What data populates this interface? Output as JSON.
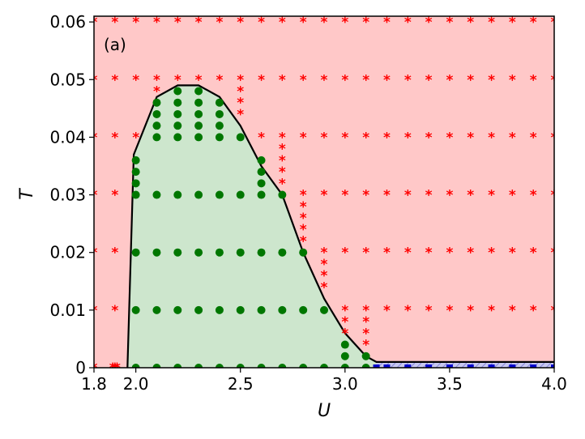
{
  "chart_data": {
    "type": "scatter",
    "panel_label": "(a)",
    "xlabel": "U",
    "ylabel": "T",
    "xlim": [
      1.8,
      4.0
    ],
    "ylim": [
      0,
      0.061
    ],
    "x_ticks": [
      "1.8",
      "2.0",
      "2.5",
      "3.0",
      "3.5",
      "4.0"
    ],
    "y_ticks": [
      "0",
      "0.01",
      "0.02",
      "0.03",
      "0.04",
      "0.05",
      "0.06"
    ],
    "grid": false,
    "colors": {
      "red_region": "#ffc8c8",
      "green_region": "#cde6cd",
      "blue_region": "#c8c8f0",
      "boundary": "#000000",
      "star": "#ff0000",
      "circle": "#007700",
      "square": "#0000cc"
    },
    "boundary": [
      [
        1.96,
        0
      ],
      [
        1.99,
        0.037
      ],
      [
        2.1,
        0.047
      ],
      [
        2.2,
        0.049
      ],
      [
        2.3,
        0.049
      ],
      [
        2.4,
        0.047
      ],
      [
        2.5,
        0.042
      ],
      [
        2.6,
        0.035
      ],
      [
        2.7,
        0.03
      ],
      [
        2.8,
        0.02
      ],
      [
        2.9,
        0.012
      ],
      [
        3.0,
        0.006
      ],
      [
        3.1,
        0.002
      ],
      [
        3.15,
        0.001
      ],
      [
        4.0,
        0.001
      ]
    ],
    "blue_region": {
      "x_start": 3.15,
      "x_end": 4.0,
      "y_top": 0.001
    },
    "series": [
      {
        "marker": "circle",
        "points": [
          [
            2.0,
            0
          ],
          [
            2.0,
            0.01
          ],
          [
            2.0,
            0.02
          ],
          [
            2.0,
            0.03
          ],
          [
            2.0,
            0.032
          ],
          [
            2.0,
            0.034
          ],
          [
            2.0,
            0.036
          ],
          [
            2.1,
            0
          ],
          [
            2.1,
            0.01
          ],
          [
            2.1,
            0.02
          ],
          [
            2.1,
            0.03
          ],
          [
            2.1,
            0.04
          ],
          [
            2.1,
            0.042
          ],
          [
            2.1,
            0.044
          ],
          [
            2.1,
            0.046
          ],
          [
            2.2,
            0
          ],
          [
            2.2,
            0.01
          ],
          [
            2.2,
            0.02
          ],
          [
            2.2,
            0.03
          ],
          [
            2.2,
            0.04
          ],
          [
            2.2,
            0.042
          ],
          [
            2.2,
            0.044
          ],
          [
            2.2,
            0.046
          ],
          [
            2.2,
            0.048
          ],
          [
            2.3,
            0
          ],
          [
            2.3,
            0.01
          ],
          [
            2.3,
            0.02
          ],
          [
            2.3,
            0.03
          ],
          [
            2.3,
            0.04
          ],
          [
            2.3,
            0.042
          ],
          [
            2.3,
            0.044
          ],
          [
            2.3,
            0.046
          ],
          [
            2.3,
            0.048
          ],
          [
            2.4,
            0
          ],
          [
            2.4,
            0.01
          ],
          [
            2.4,
            0.02
          ],
          [
            2.4,
            0.03
          ],
          [
            2.4,
            0.04
          ],
          [
            2.4,
            0.042
          ],
          [
            2.4,
            0.044
          ],
          [
            2.4,
            0.046
          ],
          [
            2.5,
            0
          ],
          [
            2.5,
            0.01
          ],
          [
            2.5,
            0.02
          ],
          [
            2.5,
            0.03
          ],
          [
            2.5,
            0.04
          ],
          [
            2.6,
            0
          ],
          [
            2.6,
            0.01
          ],
          [
            2.6,
            0.02
          ],
          [
            2.6,
            0.03
          ],
          [
            2.6,
            0.032
          ],
          [
            2.6,
            0.034
          ],
          [
            2.6,
            0.036
          ],
          [
            2.7,
            0
          ],
          [
            2.7,
            0.01
          ],
          [
            2.7,
            0.02
          ],
          [
            2.7,
            0.03
          ],
          [
            2.8,
            0
          ],
          [
            2.8,
            0.01
          ],
          [
            2.8,
            0.02
          ],
          [
            2.9,
            0
          ],
          [
            2.9,
            0.01
          ],
          [
            3.0,
            0
          ],
          [
            3.0,
            0.002
          ],
          [
            3.0,
            0.004
          ],
          [
            3.1,
            0
          ],
          [
            3.1,
            0.002
          ]
        ]
      },
      {
        "marker": "star",
        "points": [
          [
            1.8,
            0
          ],
          [
            1.8,
            0.01
          ],
          [
            1.8,
            0.02
          ],
          [
            1.8,
            0.03
          ],
          [
            1.8,
            0.04
          ],
          [
            1.8,
            0.05
          ],
          [
            1.8,
            0.06
          ],
          [
            1.9,
            0.01
          ],
          [
            1.9,
            0.02
          ],
          [
            1.9,
            0.03
          ],
          [
            1.9,
            0.04
          ],
          [
            1.9,
            0.05
          ],
          [
            1.9,
            0.06
          ],
          [
            1.89,
            0
          ],
          [
            1.9,
            0
          ],
          [
            1.91,
            0
          ],
          [
            2.0,
            0.04
          ],
          [
            2.0,
            0.05
          ],
          [
            2.0,
            0.06
          ],
          [
            2.1,
            0.05
          ],
          [
            2.1,
            0.06
          ],
          [
            2.1,
            0.048
          ],
          [
            2.2,
            0.05
          ],
          [
            2.2,
            0.06
          ],
          [
            2.3,
            0.05
          ],
          [
            2.3,
            0.06
          ],
          [
            2.4,
            0.05
          ],
          [
            2.4,
            0.06
          ],
          [
            2.5,
            0.044
          ],
          [
            2.5,
            0.046
          ],
          [
            2.5,
            0.048
          ],
          [
            2.5,
            0.05
          ],
          [
            2.5,
            0.06
          ],
          [
            2.6,
            0.04
          ],
          [
            2.6,
            0.05
          ],
          [
            2.6,
            0.06
          ],
          [
            2.7,
            0.032
          ],
          [
            2.7,
            0.034
          ],
          [
            2.7,
            0.036
          ],
          [
            2.7,
            0.038
          ],
          [
            2.7,
            0.04
          ],
          [
            2.7,
            0.05
          ],
          [
            2.7,
            0.06
          ],
          [
            2.8,
            0.022
          ],
          [
            2.8,
            0.024
          ],
          [
            2.8,
            0.026
          ],
          [
            2.8,
            0.028
          ],
          [
            2.8,
            0.03
          ],
          [
            2.8,
            0.04
          ],
          [
            2.8,
            0.05
          ],
          [
            2.8,
            0.06
          ],
          [
            2.9,
            0.014
          ],
          [
            2.9,
            0.016
          ],
          [
            2.9,
            0.018
          ],
          [
            2.9,
            0.02
          ],
          [
            2.9,
            0.03
          ],
          [
            2.9,
            0.04
          ],
          [
            2.9,
            0.05
          ],
          [
            2.9,
            0.06
          ],
          [
            3.0,
            0.006
          ],
          [
            3.0,
            0.008
          ],
          [
            3.0,
            0.01
          ],
          [
            3.0,
            0.02
          ],
          [
            3.0,
            0.03
          ],
          [
            3.0,
            0.04
          ],
          [
            3.0,
            0.05
          ],
          [
            3.0,
            0.06
          ],
          [
            3.1,
            0.004
          ],
          [
            3.1,
            0.006
          ],
          [
            3.1,
            0.008
          ],
          [
            3.1,
            0.01
          ],
          [
            3.1,
            0.02
          ],
          [
            3.1,
            0.03
          ],
          [
            3.1,
            0.04
          ],
          [
            3.1,
            0.05
          ],
          [
            3.1,
            0.06
          ],
          [
            3.2,
            0.01
          ],
          [
            3.2,
            0.02
          ],
          [
            3.2,
            0.03
          ],
          [
            3.2,
            0.04
          ],
          [
            3.2,
            0.05
          ],
          [
            3.2,
            0.06
          ],
          [
            3.3,
            0.01
          ],
          [
            3.3,
            0.02
          ],
          [
            3.3,
            0.03
          ],
          [
            3.3,
            0.04
          ],
          [
            3.3,
            0.05
          ],
          [
            3.3,
            0.06
          ],
          [
            3.4,
            0.01
          ],
          [
            3.4,
            0.02
          ],
          [
            3.4,
            0.03
          ],
          [
            3.4,
            0.04
          ],
          [
            3.4,
            0.05
          ],
          [
            3.4,
            0.06
          ],
          [
            3.5,
            0.01
          ],
          [
            3.5,
            0.02
          ],
          [
            3.5,
            0.03
          ],
          [
            3.5,
            0.04
          ],
          [
            3.5,
            0.05
          ],
          [
            3.5,
            0.06
          ],
          [
            3.6,
            0.01
          ],
          [
            3.6,
            0.02
          ],
          [
            3.6,
            0.03
          ],
          [
            3.6,
            0.04
          ],
          [
            3.6,
            0.05
          ],
          [
            3.6,
            0.06
          ],
          [
            3.7,
            0.01
          ],
          [
            3.7,
            0.02
          ],
          [
            3.7,
            0.03
          ],
          [
            3.7,
            0.04
          ],
          [
            3.7,
            0.05
          ],
          [
            3.7,
            0.06
          ],
          [
            3.8,
            0.01
          ],
          [
            3.8,
            0.02
          ],
          [
            3.8,
            0.03
          ],
          [
            3.8,
            0.04
          ],
          [
            3.8,
            0.05
          ],
          [
            3.8,
            0.06
          ],
          [
            3.9,
            0.01
          ],
          [
            3.9,
            0.02
          ],
          [
            3.9,
            0.03
          ],
          [
            3.9,
            0.04
          ],
          [
            3.9,
            0.05
          ],
          [
            3.9,
            0.06
          ],
          [
            4.0,
            0.01
          ],
          [
            4.0,
            0.02
          ],
          [
            4.0,
            0.03
          ],
          [
            4.0,
            0.04
          ],
          [
            4.0,
            0.05
          ],
          [
            4.0,
            0.06
          ]
        ]
      },
      {
        "marker": "square",
        "points": [
          [
            3.15,
            0
          ],
          [
            3.2,
            0
          ],
          [
            3.3,
            0
          ],
          [
            3.4,
            0
          ],
          [
            3.5,
            0
          ],
          [
            3.6,
            0
          ],
          [
            3.7,
            0
          ],
          [
            3.8,
            0
          ],
          [
            3.9,
            0
          ],
          [
            4.0,
            0
          ]
        ]
      }
    ]
  }
}
